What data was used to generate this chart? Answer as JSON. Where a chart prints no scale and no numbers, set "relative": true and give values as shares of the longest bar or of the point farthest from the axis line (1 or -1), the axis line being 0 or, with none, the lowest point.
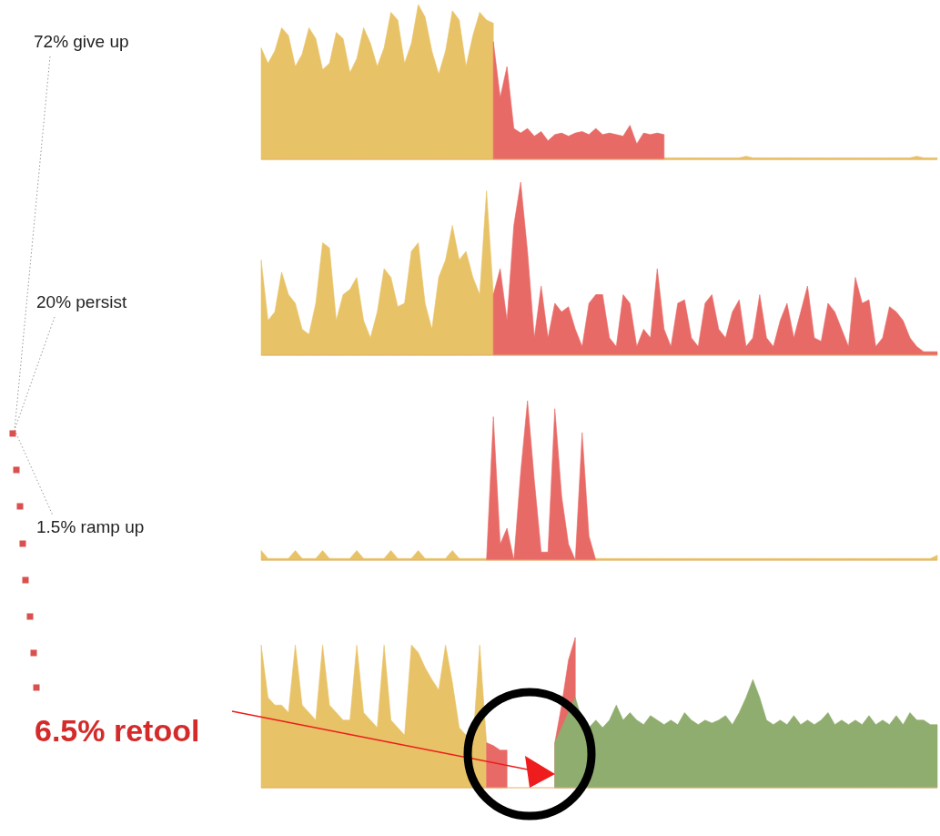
{
  "chart_data": [
    {
      "type": "area",
      "relative": true,
      "annotations": [
        "72% give up"
      ],
      "categories": [
        null,
        null,
        null,
        null,
        null,
        null,
        null,
        null,
        null,
        null,
        null,
        null,
        null,
        null,
        null,
        null,
        null,
        null,
        null,
        null,
        null,
        null,
        null,
        null,
        null,
        null,
        null,
        null,
        null,
        null,
        null,
        null,
        null,
        null,
        null,
        null,
        null,
        null,
        null,
        null,
        null,
        null,
        null,
        null,
        null,
        null,
        null,
        null,
        null,
        null,
        null,
        null,
        null,
        null,
        null,
        null,
        null,
        null,
        null,
        null,
        null,
        null,
        null,
        null,
        null,
        null,
        null,
        null,
        null,
        null,
        null,
        null,
        null,
        null,
        null,
        null,
        null,
        null,
        null,
        null,
        null,
        null,
        null,
        null,
        null,
        null,
        null,
        null,
        null,
        null,
        null,
        null,
        null,
        null,
        null,
        null,
        null,
        null,
        null,
        null
      ],
      "series": [
        {
          "color": "#e8c266",
          "values": [
            0.72,
            0.62,
            0.7,
            0.85,
            0.8,
            0.6,
            0.68,
            0.85,
            0.78,
            0.58,
            0.62,
            0.82,
            0.78,
            0.56,
            0.65,
            0.85,
            0.75,
            0.6,
            0.72,
            0.95,
            0.9,
            0.62,
            0.75,
            1.0,
            0.92,
            0.7,
            0.55,
            0.7,
            0.96,
            0.9,
            0.6,
            0.8,
            0.95,
            0.9,
            0.88,
            null,
            null,
            null,
            null,
            null,
            null,
            null,
            null,
            null,
            null,
            null,
            null,
            null,
            null,
            null,
            null,
            null,
            null,
            null,
            null,
            null,
            null,
            null,
            null,
            0.01,
            0.01,
            0.01,
            0.01,
            0.01,
            0.01,
            0.01,
            0.01,
            0.01,
            0.01,
            0.01,
            0.01,
            0.02,
            0.01,
            0.01,
            0.01,
            0.01,
            0.01,
            0.01,
            0.01,
            0.01,
            0.01,
            0.01,
            0.01,
            0.01,
            0.01,
            0.01,
            0.01,
            0.01,
            0.01,
            0.01,
            0.01,
            0.01,
            0.01,
            0.01,
            0.01,
            0.01,
            0.02,
            0.01,
            0.01,
            0.01
          ]
        },
        {
          "color": "#e86a66",
          "values": [
            null,
            null,
            null,
            null,
            null,
            null,
            null,
            null,
            null,
            null,
            null,
            null,
            null,
            null,
            null,
            null,
            null,
            null,
            null,
            null,
            null,
            null,
            null,
            null,
            null,
            null,
            null,
            null,
            null,
            null,
            null,
            null,
            null,
            null,
            0.76,
            0.4,
            0.6,
            0.2,
            0.17,
            0.2,
            0.15,
            0.18,
            0.12,
            0.16,
            0.17,
            0.15,
            0.17,
            0.18,
            0.16,
            0.2,
            0.16,
            0.17,
            0.16,
            0.15,
            0.22,
            0.1,
            0.17,
            0.16,
            0.17,
            0.16,
            null,
            null,
            null,
            null,
            null,
            null,
            null,
            null,
            null,
            null,
            null,
            null,
            null,
            null,
            null,
            null,
            null,
            null,
            null,
            null,
            null,
            null,
            null,
            null,
            null,
            null,
            null,
            null,
            null,
            null,
            null,
            null,
            null,
            null,
            null,
            null,
            null,
            null,
            null,
            null
          ]
        }
      ]
    },
    {
      "type": "area",
      "relative": true,
      "annotations": [
        "20% persist"
      ],
      "categories": [
        null,
        null,
        null,
        null,
        null,
        null,
        null,
        null,
        null,
        null,
        null,
        null,
        null,
        null,
        null,
        null,
        null,
        null,
        null,
        null,
        null,
        null,
        null,
        null,
        null,
        null,
        null,
        null,
        null,
        null,
        null,
        null,
        null,
        null,
        null,
        null,
        null,
        null,
        null,
        null,
        null,
        null,
        null,
        null,
        null,
        null,
        null,
        null,
        null,
        null,
        null,
        null,
        null,
        null,
        null,
        null,
        null,
        null,
        null,
        null,
        null,
        null,
        null,
        null,
        null,
        null,
        null,
        null,
        null,
        null,
        null,
        null,
        null,
        null,
        null,
        null,
        null,
        null,
        null,
        null,
        null,
        null,
        null,
        null,
        null,
        null,
        null,
        null,
        null,
        null,
        null,
        null,
        null,
        null,
        null,
        null,
        null,
        null,
        null,
        null
      ],
      "series": [
        {
          "color": "#e8c266",
          "values": [
            0.55,
            0.2,
            0.25,
            0.48,
            0.35,
            0.3,
            0.15,
            0.12,
            0.3,
            0.65,
            0.62,
            0.2,
            0.35,
            0.38,
            0.45,
            0.2,
            0.1,
            0.25,
            0.5,
            0.45,
            0.28,
            0.3,
            0.6,
            0.65,
            0.3,
            0.15,
            0.45,
            0.55,
            0.75,
            0.55,
            0.6,
            0.45,
            0.35,
            0.95,
            0.35,
            null,
            null,
            null,
            null,
            null,
            null,
            null,
            null,
            null,
            null,
            null,
            null,
            null,
            null,
            null,
            null,
            null,
            null,
            null,
            null,
            null,
            null,
            null,
            null,
            null,
            null,
            null,
            null,
            null,
            null,
            null,
            null,
            null,
            null,
            null,
            null,
            null,
            null,
            null,
            null,
            null,
            null,
            null,
            null,
            null,
            null,
            null,
            null,
            null,
            null,
            null,
            null,
            null,
            null,
            null,
            null,
            null,
            null,
            null,
            null,
            null,
            null,
            null,
            null,
            null
          ]
        },
        {
          "color": "#e86a66",
          "values": [
            null,
            null,
            null,
            null,
            null,
            null,
            null,
            null,
            null,
            null,
            null,
            null,
            null,
            null,
            null,
            null,
            null,
            null,
            null,
            null,
            null,
            null,
            null,
            null,
            null,
            null,
            null,
            null,
            null,
            null,
            null,
            null,
            null,
            null,
            0.35,
            0.5,
            0.2,
            0.75,
            1.0,
            0.6,
            0.1,
            0.4,
            0.1,
            0.3,
            0.25,
            0.28,
            0.15,
            0.05,
            0.3,
            0.35,
            0.35,
            0.1,
            0.05,
            0.35,
            0.3,
            0.05,
            0.15,
            0.1,
            0.5,
            0.15,
            0.05,
            0.3,
            0.32,
            0.1,
            0.05,
            0.3,
            0.35,
            0.15,
            0.1,
            0.25,
            0.32,
            0.05,
            0.1,
            0.35,
            0.1,
            0.05,
            0.2,
            0.3,
            0.1,
            0.25,
            0.4,
            0.1,
            0.08,
            0.3,
            0.25,
            0.15,
            0.05,
            0.45,
            0.3,
            0.32,
            0.05,
            0.1,
            0.28,
            0.25,
            0.2,
            0.1,
            0.05,
            0.02,
            0.02,
            0.02
          ]
        }
      ]
    },
    {
      "type": "area",
      "relative": true,
      "annotations": [
        "1.5% ramp up"
      ],
      "categories": [
        null,
        null,
        null,
        null,
        null,
        null,
        null,
        null,
        null,
        null,
        null,
        null,
        null,
        null,
        null,
        null,
        null,
        null,
        null,
        null,
        null,
        null,
        null,
        null,
        null,
        null,
        null,
        null,
        null,
        null,
        null,
        null,
        null,
        null,
        null,
        null,
        null,
        null,
        null,
        null,
        null,
        null,
        null,
        null,
        null,
        null,
        null,
        null,
        null,
        null,
        null,
        null,
        null,
        null,
        null,
        null,
        null,
        null,
        null,
        null,
        null,
        null,
        null,
        null,
        null,
        null,
        null,
        null,
        null,
        null,
        null,
        null,
        null,
        null,
        null,
        null,
        null,
        null,
        null,
        null,
        null,
        null,
        null,
        null,
        null,
        null,
        null,
        null,
        null,
        null,
        null,
        null,
        null,
        null,
        null,
        null,
        null,
        null,
        null,
        null
      ],
      "series": [
        {
          "color": "#e8c266",
          "values": [
            0.06,
            0.01,
            0.01,
            0.01,
            0.01,
            0.06,
            0.01,
            0.01,
            0.01,
            0.06,
            0.01,
            0.01,
            0.01,
            0.01,
            0.06,
            0.01,
            0.01,
            0.01,
            0.01,
            0.06,
            0.01,
            0.01,
            0.01,
            0.06,
            0.01,
            0.01,
            0.01,
            0.01,
            0.06,
            0.01,
            0.01,
            0.01,
            0.01,
            0.01,
            null,
            null,
            null,
            null,
            null,
            null,
            null,
            null,
            null,
            null,
            null,
            null,
            null,
            null,
            null,
            0.01,
            0.01,
            0.01,
            0.01,
            0.01,
            0.01,
            0.01,
            0.01,
            0.01,
            0.01,
            0.01,
            0.01,
            0.01,
            0.01,
            0.01,
            0.01,
            0.01,
            0.01,
            0.01,
            0.01,
            0.01,
            0.01,
            0.01,
            0.01,
            0.01,
            0.01,
            0.01,
            0.01,
            0.01,
            0.01,
            0.01,
            0.01,
            0.01,
            0.01,
            0.01,
            0.01,
            0.01,
            0.01,
            0.01,
            0.01,
            0.01,
            0.01,
            0.01,
            0.01,
            0.01,
            0.01,
            0.01,
            0.01,
            0.01,
            0.01,
            0.03
          ]
        },
        {
          "color": "#e86a66",
          "values": [
            null,
            null,
            null,
            null,
            null,
            null,
            null,
            null,
            null,
            null,
            null,
            null,
            null,
            null,
            null,
            null,
            null,
            null,
            null,
            null,
            null,
            null,
            null,
            null,
            null,
            null,
            null,
            null,
            null,
            null,
            null,
            null,
            null,
            0,
            0.9,
            0.1,
            0.2,
            0,
            0.55,
            1.0,
            0.5,
            0.05,
            0.05,
            0.95,
            0.4,
            0.1,
            0,
            0.8,
            0.15,
            0,
            null,
            null,
            null,
            null,
            null,
            null,
            null,
            null,
            null,
            null,
            null,
            null,
            null,
            null,
            null,
            null,
            null,
            null,
            null,
            null,
            null,
            null,
            null,
            null,
            null,
            null,
            null,
            null,
            null,
            null,
            null,
            null,
            null,
            null,
            null,
            null,
            null,
            null,
            null,
            null,
            null,
            null,
            null,
            null,
            null,
            null,
            null,
            null,
            null,
            null
          ]
        }
      ]
    },
    {
      "type": "area",
      "relative": true,
      "annotations": [
        "6.5% retool"
      ],
      "categories": [
        null,
        null,
        null,
        null,
        null,
        null,
        null,
        null,
        null,
        null,
        null,
        null,
        null,
        null,
        null,
        null,
        null,
        null,
        null,
        null,
        null,
        null,
        null,
        null,
        null,
        null,
        null,
        null,
        null,
        null,
        null,
        null,
        null,
        null,
        null,
        null,
        null,
        null,
        null,
        null,
        null,
        null,
        null,
        null,
        null,
        null,
        null,
        null,
        null,
        null,
        null,
        null,
        null,
        null,
        null,
        null,
        null,
        null,
        null,
        null,
        null,
        null,
        null,
        null,
        null,
        null,
        null,
        null,
        null,
        null,
        null,
        null,
        null,
        null,
        null,
        null,
        null,
        null,
        null,
        null,
        null,
        null,
        null,
        null,
        null,
        null,
        null,
        null,
        null,
        null,
        null,
        null,
        null,
        null,
        null,
        null,
        null,
        null,
        null,
        null
      ],
      "series": [
        {
          "color": "#e8c266",
          "values": [
            0.95,
            0.6,
            0.55,
            0.55,
            0.5,
            0.95,
            0.55,
            0.5,
            0.45,
            0.95,
            0.55,
            0.5,
            0.45,
            0.45,
            0.95,
            0.5,
            0.45,
            0.4,
            0.95,
            0.45,
            0.4,
            0.35,
            0.95,
            0.9,
            0.8,
            0.72,
            0.65,
            0.95,
            0.7,
            0.4,
            0.35,
            0.3,
            0.95,
            0.3,
            null,
            null,
            null,
            null,
            null,
            null,
            null,
            null,
            null,
            null,
            null,
            null,
            null,
            null,
            null,
            null,
            null,
            null,
            null,
            null,
            null,
            null,
            null,
            null,
            null,
            null,
            null,
            null,
            null,
            null,
            null,
            null,
            null,
            null,
            null,
            null,
            null,
            null,
            null,
            null,
            null,
            null,
            null,
            null,
            null,
            null,
            null,
            null,
            null,
            null,
            null,
            null,
            null,
            null,
            null,
            null,
            null,
            null,
            null,
            null,
            null,
            null,
            null,
            null,
            null,
            null
          ]
        },
        {
          "color": "#e86a66",
          "values": [
            null,
            null,
            null,
            null,
            null,
            null,
            null,
            null,
            null,
            null,
            null,
            null,
            null,
            null,
            null,
            null,
            null,
            null,
            null,
            null,
            null,
            null,
            null,
            null,
            null,
            null,
            null,
            null,
            null,
            null,
            null,
            null,
            null,
            0.3,
            0.28,
            0.25,
            0.25,
            null,
            null,
            null,
            null,
            null,
            null,
            0.3,
            0.55,
            0.85,
            1.0,
            null,
            null,
            null,
            null,
            null,
            null,
            null,
            null,
            null,
            null,
            null,
            null,
            null,
            null,
            null,
            null,
            null,
            null,
            null,
            null,
            null,
            null,
            null,
            null,
            null,
            null,
            null,
            null,
            null,
            null,
            null,
            null,
            null,
            null,
            null,
            null,
            null,
            null,
            null,
            null,
            null,
            null,
            null,
            null,
            null,
            null,
            null,
            null,
            null,
            null,
            null,
            null,
            null
          ]
        },
        {
          "color": "#8fad6e",
          "values": [
            null,
            null,
            null,
            null,
            null,
            null,
            null,
            null,
            null,
            null,
            null,
            null,
            null,
            null,
            null,
            null,
            null,
            null,
            null,
            null,
            null,
            null,
            null,
            null,
            null,
            null,
            null,
            null,
            null,
            null,
            null,
            null,
            null,
            null,
            null,
            null,
            null,
            null,
            null,
            null,
            null,
            null,
            null,
            0.3,
            0.4,
            0.5,
            0.6,
            0.45,
            0.4,
            0.45,
            0.4,
            0.45,
            0.55,
            0.45,
            0.5,
            0.45,
            0.42,
            0.48,
            0.45,
            0.42,
            0.45,
            0.42,
            0.5,
            0.45,
            0.42,
            0.45,
            0.43,
            0.45,
            0.48,
            0.42,
            0.5,
            0.6,
            0.72,
            0.6,
            0.45,
            0.42,
            0.45,
            0.42,
            0.48,
            0.42,
            0.45,
            0.42,
            0.45,
            0.5,
            0.42,
            0.45,
            0.42,
            0.45,
            0.42,
            0.48,
            0.42,
            0.45,
            0.42,
            0.48,
            0.42,
            0.5,
            0.45,
            0.45,
            0.42,
            0.42
          ]
        }
      ]
    }
  ]
}
